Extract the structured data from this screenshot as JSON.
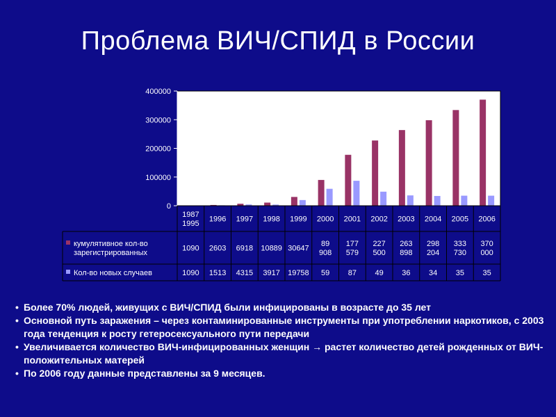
{
  "title": "Проблема ВИЧ/СПИД в России",
  "chart_data": {
    "type": "bar",
    "categories": [
      "1987 - 1995",
      "1996",
      "1997",
      "1998",
      "1999",
      "2000",
      "2001",
      "2002",
      "2003",
      "2004",
      "2005",
      "2006"
    ],
    "category_lines": [
      [
        "1987",
        "1995"
      ],
      [
        "1996"
      ],
      [
        "1997"
      ],
      [
        "1998"
      ],
      [
        "1999"
      ],
      [
        "2000"
      ],
      [
        "2001"
      ],
      [
        "2002"
      ],
      [
        "2003"
      ],
      [
        "2004"
      ],
      [
        "2005"
      ],
      [
        "2006"
      ]
    ],
    "ylim": [
      0,
      400000
    ],
    "yticks": [
      "0",
      "100000",
      "200000",
      "300000",
      "400000"
    ],
    "series": [
      {
        "name": "кумулятивное кол-во зарегистрированных",
        "name_lines": [
          "кумулятивное кол-во",
          "зарегистрированных"
        ],
        "color": "#993366",
        "values": [
          1090,
          2603,
          6918,
          10889,
          30647,
          89908,
          177579,
          227500,
          263898,
          298204,
          333730,
          370000
        ],
        "table_labels": [
          [
            "1090"
          ],
          [
            "2603"
          ],
          [
            "6918"
          ],
          [
            "10889"
          ],
          [
            "30647"
          ],
          [
            "89",
            "908"
          ],
          [
            "177",
            "579"
          ],
          [
            "227",
            "500"
          ],
          [
            "263",
            "898"
          ],
          [
            "298",
            "204"
          ],
          [
            "333",
            "730"
          ],
          [
            "370",
            "000"
          ]
        ]
      },
      {
        "name": "Кол-во новых случаев",
        "name_lines": [
          "Кол-во новых случаев"
        ],
        "color": "#9999ff",
        "values": [
          1090,
          1513,
          4315,
          3917,
          19758,
          59000,
          87000,
          49000,
          36000,
          34000,
          35000,
          35000
        ],
        "table_labels": [
          [
            "1090"
          ],
          [
            "1513"
          ],
          [
            "4315"
          ],
          [
            "3917"
          ],
          [
            "19758"
          ],
          [
            "59"
          ],
          [
            "87"
          ],
          [
            "49"
          ],
          [
            "36"
          ],
          [
            "34"
          ],
          [
            "35"
          ],
          [
            "35"
          ]
        ]
      }
    ]
  },
  "bullets": [
    "Более 70% людей, живущих с ВИЧ/СПИД были инфицированы в возрасте до 35 лет",
    "Основной путь заражения – через контаминированные инструменты при употреблении наркотиков, с 2003 года тенденция к росту гетеросексуального пути передачи",
    "Увеличивается количество ВИЧ-инфицированных женщин → растет количество детей рожденных от ВИЧ-положительных матерей",
    "По 2006 году данные представлены за 9 месяцев."
  ],
  "bullet_marker": "•"
}
